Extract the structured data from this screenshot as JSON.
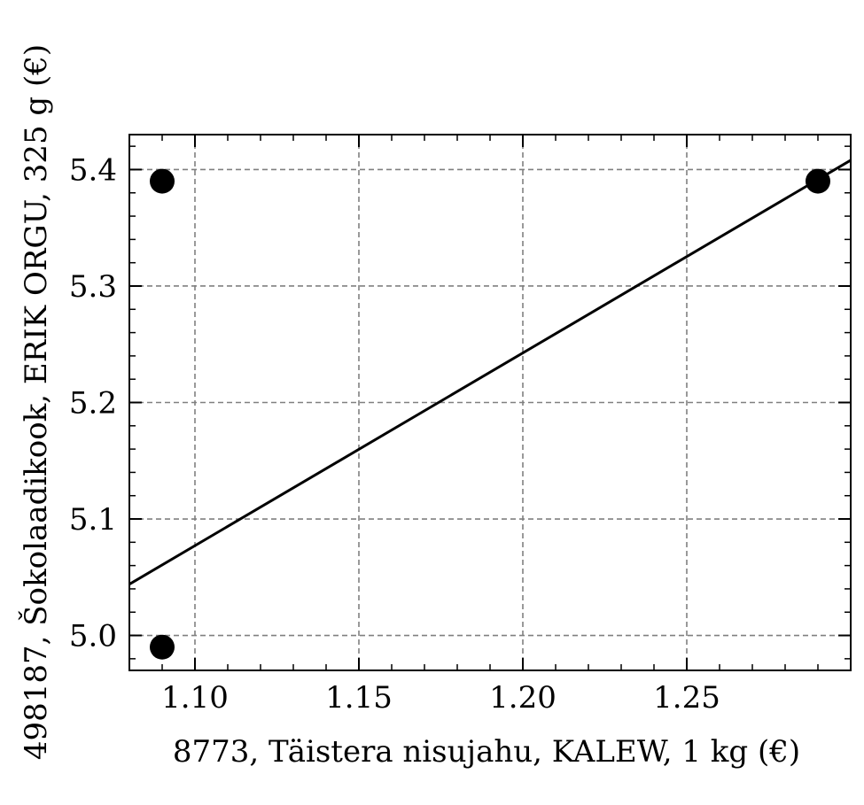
{
  "chart_data": {
    "type": "scatter",
    "xlabel": "8773, Täistera nisujahu, KALEW, 1 kg (€)",
    "ylabel": "498187, Šokolaadikook, ERIK ORGU, 325 g (€)",
    "xlim": [
      1.08,
      1.3
    ],
    "ylim": [
      4.97,
      5.43
    ],
    "x_ticks": [
      1.1,
      1.15,
      1.2,
      1.25
    ],
    "x_tick_labels": [
      "1.10",
      "1.15",
      "1.20",
      "1.25"
    ],
    "y_ticks": [
      5.0,
      5.1,
      5.2,
      5.3,
      5.4
    ],
    "y_tick_labels": [
      "5.0",
      "5.1",
      "5.2",
      "5.3",
      "5.4"
    ],
    "x_minor_step": 0.01,
    "y_minor_step": 0.02,
    "grid": true,
    "points": [
      {
        "x": 1.09,
        "y": 5.39
      },
      {
        "x": 1.09,
        "y": 4.99
      },
      {
        "x": 1.29,
        "y": 5.39
      }
    ],
    "fit_line": {
      "x": [
        1.08,
        1.3
      ],
      "y": [
        5.044,
        5.408
      ]
    },
    "colors": {
      "marker": "#000000",
      "line": "#000000",
      "grid": "#808080"
    }
  }
}
